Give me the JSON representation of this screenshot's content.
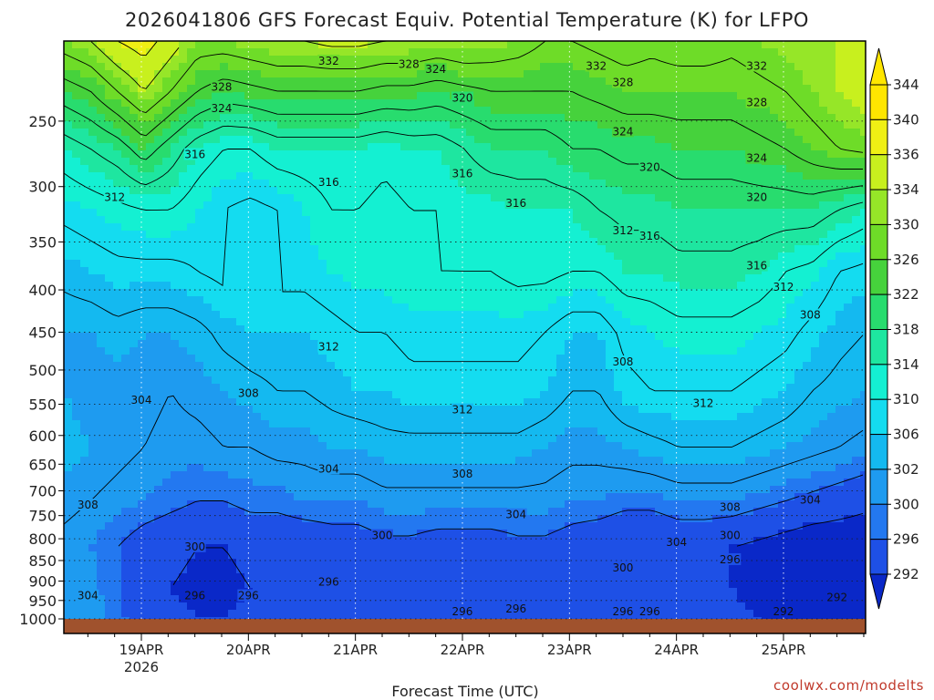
{
  "chart_data": {
    "type": "heatmap",
    "title": "2026041806 GFS Forecast Equiv. Potential Temperature (K) for LFPO",
    "xlabel": "Forecast Time (UTC)",
    "ylabel": "",
    "y_axis": {
      "scale": "pressure (log), inverted",
      "ticks": [
        250,
        300,
        350,
        400,
        450,
        500,
        550,
        600,
        650,
        700,
        750,
        800,
        850,
        900,
        950,
        1000
      ],
      "range": [
        1000,
        200
      ]
    },
    "x_axis": {
      "ticks": [
        "19APR",
        "20APR",
        "21APR",
        "22APR",
        "23APR",
        "24APR",
        "25APR"
      ],
      "year_label": "2026",
      "range_days": [
        "18APR 06Z",
        "25APR 18Z"
      ]
    },
    "grid": true,
    "colorbar": {
      "position": "right",
      "levels": [
        292,
        296,
        300,
        302,
        306,
        310,
        314,
        318,
        322,
        326,
        330,
        334,
        336,
        340,
        344
      ],
      "colors": [
        "#0a28c8",
        "#1e50e6",
        "#2378f0",
        "#1e9bf0",
        "#14b9f0",
        "#14dcf0",
        "#14f0d2",
        "#1ee6a0",
        "#28dc6e",
        "#46d23c",
        "#6edc28",
        "#96e628",
        "#c8f01e",
        "#f0f014",
        "#ffe600"
      ]
    },
    "contour_labels": [
      {
        "value": "332",
        "time": "20APR 18Z",
        "p": 212
      },
      {
        "value": "328",
        "time": "21APR 12Z",
        "p": 214
      },
      {
        "value": "324",
        "time": "21APR 18Z",
        "p": 217
      },
      {
        "value": "332",
        "time": "23APR 06Z",
        "p": 215
      },
      {
        "value": "328",
        "time": "23APR 12Z",
        "p": 225
      },
      {
        "value": "332",
        "time": "24APR 18Z",
        "p": 215
      },
      {
        "value": "328",
        "time": "19APR 18Z",
        "p": 228
      },
      {
        "value": "324",
        "time": "19APR 18Z",
        "p": 242
      },
      {
        "value": "320",
        "time": "22APR 00Z",
        "p": 235
      },
      {
        "value": "328",
        "time": "24APR 18Z",
        "p": 238
      },
      {
        "value": "324",
        "time": "23APR 12Z",
        "p": 258
      },
      {
        "value": "324",
        "time": "24APR 18Z",
        "p": 278
      },
      {
        "value": "316",
        "time": "19APR 12Z",
        "p": 275
      },
      {
        "value": "320",
        "time": "23APR 18Z",
        "p": 285
      },
      {
        "value": "316",
        "time": "20APR 18Z",
        "p": 297
      },
      {
        "value": "316",
        "time": "22APR 00Z",
        "p": 290
      },
      {
        "value": "312",
        "time": "18APR 18Z",
        "p": 310
      },
      {
        "value": "320",
        "time": "24APR 18Z",
        "p": 310
      },
      {
        "value": "316",
        "time": "22APR 12Z",
        "p": 315
      },
      {
        "value": "312",
        "time": "23APR 12Z",
        "p": 340
      },
      {
        "value": "316",
        "time": "23APR 18Z",
        "p": 345
      },
      {
        "value": "316",
        "time": "24APR 18Z",
        "p": 375
      },
      {
        "value": "312",
        "time": "25APR 00Z",
        "p": 398
      },
      {
        "value": "308",
        "time": "25APR 06Z",
        "p": 430
      },
      {
        "value": "312",
        "time": "20APR 18Z",
        "p": 470
      },
      {
        "value": "308",
        "time": "23APR 12Z",
        "p": 490
      },
      {
        "value": "308",
        "time": "20APR 00Z",
        "p": 535
      },
      {
        "value": "304",
        "time": "19APR 00Z",
        "p": 545
      },
      {
        "value": "312",
        "time": "22APR 00Z",
        "p": 560
      },
      {
        "value": "312",
        "time": "24APR 06Z",
        "p": 550
      },
      {
        "value": "304",
        "time": "20APR 18Z",
        "p": 660
      },
      {
        "value": "308",
        "time": "22APR 00Z",
        "p": 670
      },
      {
        "value": "308",
        "time": "18APR 12Z",
        "p": 730
      },
      {
        "value": "304",
        "time": "22APR 12Z",
        "p": 750
      },
      {
        "value": "308",
        "time": "24APR 12Z",
        "p": 735
      },
      {
        "value": "304",
        "time": "25APR 06Z",
        "p": 720
      },
      {
        "value": "300",
        "time": "21APR 06Z",
        "p": 795
      },
      {
        "value": "304",
        "time": "24APR 00Z",
        "p": 810
      },
      {
        "value": "300",
        "time": "24APR 12Z",
        "p": 795
      },
      {
        "value": "300",
        "time": "19APR 12Z",
        "p": 820
      },
      {
        "value": "296",
        "time": "24APR 12Z",
        "p": 850
      },
      {
        "value": "300",
        "time": "23APR 12Z",
        "p": 870
      },
      {
        "value": "296",
        "time": "20APR 18Z",
        "p": 905
      },
      {
        "value": "296",
        "time": "19APR 12Z",
        "p": 940
      },
      {
        "value": "296",
        "time": "20APR 00Z",
        "p": 940
      },
      {
        "value": "304",
        "time": "18APR 12Z",
        "p": 940
      },
      {
        "value": "292",
        "time": "25APR 12Z",
        "p": 945
      },
      {
        "value": "296",
        "time": "22APR 12Z",
        "p": 975
      },
      {
        "value": "296",
        "time": "23APR 12Z",
        "p": 1020
      },
      {
        "value": "296",
        "time": "22APR 00Z",
        "p": 1110
      },
      {
        "value": "292",
        "time": "25APR 00Z",
        "p": 1130
      },
      {
        "value": "296",
        "time": "23APR 18Z",
        "p": 1190
      }
    ],
    "shaded_field": [
      {
        "p": 200,
        "theta": [
          334,
          336,
          340,
          342,
          338,
          334,
          334,
          335,
          336,
          336,
          337,
          337,
          336,
          336,
          335,
          336,
          335,
          334,
          332,
          332,
          333,
          334,
          333,
          334,
          334,
          333,
          334,
          335,
          336,
          336,
          336
        ]
      },
      {
        "p": 230,
        "theta": [
          326,
          328,
          332,
          336,
          332,
          328,
          326,
          327,
          328,
          328,
          328,
          328,
          327,
          327,
          326,
          327,
          328,
          328,
          328,
          328,
          329,
          330,
          330,
          330,
          330,
          330,
          331,
          332,
          334,
          336,
          338
        ]
      },
      {
        "p": 270,
        "theta": [
          318,
          320,
          322,
          326,
          322,
          318,
          316,
          316,
          318,
          318,
          318,
          318,
          317,
          318,
          318,
          320,
          322,
          322,
          322,
          324,
          324,
          325,
          325,
          326,
          326,
          326,
          327,
          328,
          330,
          332,
          333
        ]
      },
      {
        "p": 320,
        "theta": [
          313,
          314,
          315,
          316,
          316,
          314,
          312,
          311,
          312,
          314,
          316,
          316,
          315,
          316,
          316,
          317,
          317,
          318,
          318,
          318,
          320,
          321,
          321,
          322,
          322,
          322,
          322,
          322,
          322,
          320,
          318
        ]
      },
      {
        "p": 380,
        "theta": [
          309,
          310,
          311,
          311,
          311,
          312,
          313,
          313,
          313,
          313,
          314,
          315,
          315,
          316,
          316,
          316,
          316,
          317,
          317,
          316,
          316,
          318,
          318,
          319,
          319,
          319,
          318,
          316,
          315,
          312,
          311
        ]
      },
      {
        "p": 450,
        "theta": [
          306,
          306,
          307,
          306,
          306,
          307,
          309,
          310,
          310,
          310,
          311,
          312,
          312,
          313,
          313,
          313,
          313,
          313,
          312,
          310,
          310,
          313,
          314,
          315,
          315,
          315,
          314,
          313,
          311,
          309,
          308
        ]
      },
      {
        "p": 530,
        "theta": [
          306,
          305,
          305,
          305,
          304,
          305,
          306,
          307,
          308,
          308,
          309,
          310,
          310,
          311,
          311,
          311,
          311,
          311,
          310,
          308,
          308,
          311,
          312,
          312,
          312,
          312,
          311,
          310,
          308,
          307,
          306
        ]
      },
      {
        "p": 620,
        "theta": [
          307,
          306,
          305,
          304,
          303,
          303,
          304,
          304,
          305,
          305,
          306,
          306,
          307,
          307,
          307,
          307,
          307,
          307,
          306,
          305,
          305,
          306,
          307,
          308,
          308,
          308,
          307,
          306,
          305,
          304,
          303
        ]
      },
      {
        "p": 720,
        "theta": [
          305,
          304,
          303,
          302,
          301,
          300,
          300,
          301,
          301,
          302,
          302,
          302,
          303,
          303,
          303,
          303,
          303,
          303,
          303,
          302,
          302,
          301,
          301,
          302,
          302,
          302,
          301,
          300,
          299,
          298,
          297
        ]
      },
      {
        "p": 820,
        "theta": [
          303,
          302,
          300,
          298,
          297,
          296,
          296,
          297,
          297,
          297,
          298,
          298,
          299,
          299,
          298,
          298,
          298,
          299,
          299,
          298,
          297,
          296,
          296,
          297,
          297,
          296,
          295,
          294,
          293,
          293,
          293
        ]
      },
      {
        "p": 920,
        "theta": [
          304,
          303,
          300,
          297,
          296,
          295,
          295,
          296,
          296,
          297,
          298,
          298,
          298,
          298,
          297,
          297,
          297,
          298,
          298,
          298,
          297,
          297,
          296,
          297,
          297,
          296,
          295,
          294,
          293,
          292,
          293
        ]
      },
      {
        "p": 1000,
        "theta": [
          305,
          304,
          301,
          298,
          297,
          296,
          296,
          297,
          298,
          298,
          299,
          299,
          299,
          299,
          298,
          298,
          298,
          299,
          299,
          299,
          298,
          297,
          296,
          298,
          298,
          297,
          296,
          295,
          294,
          293,
          294
        ]
      }
    ],
    "surface_color": "#a0522d"
  },
  "credit": "coolwx.com/modelts"
}
